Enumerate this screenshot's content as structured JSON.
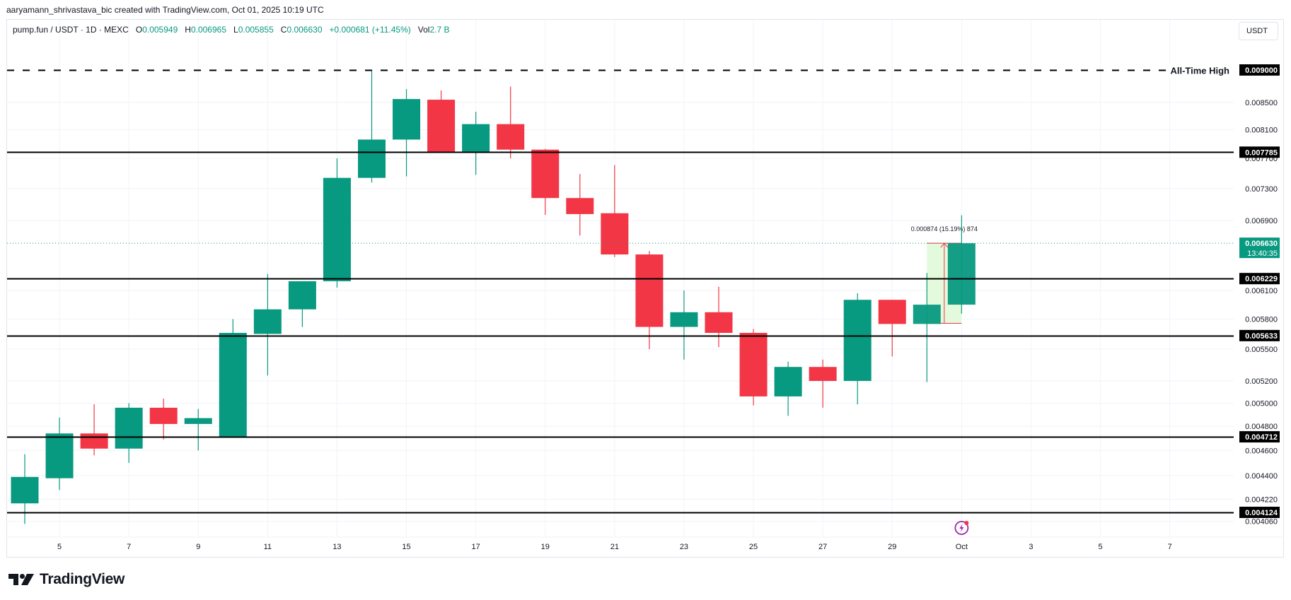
{
  "caption": "aaryamann_shrivastava_bic created with TradingView.com, Oct 01, 2025 10:19 UTC",
  "legend": {
    "symbol": "pump.fun / USDT · 1D · MEXC",
    "open_label": "O",
    "open": "0.005949",
    "high_label": "H",
    "high": "0.006965",
    "low_label": "L",
    "low": "0.005855",
    "close_label": "C",
    "close": "0.006630",
    "change": "+0.000681 (+11.45%)",
    "vol_label": "Vol",
    "vol": "2.7 B"
  },
  "currency_button": "USDT",
  "logo_text": "TradingView",
  "colors": {
    "up": "#089981",
    "down": "#f23645",
    "grid": "#f0f3fa",
    "level_line": "#000000",
    "current_price_bg": "#089981",
    "measure_fill": "#e3fadd",
    "measure_line": "#f23645",
    "event_icon": "#9c27b0"
  },
  "chart_data": {
    "type": "candlestick",
    "title": "pump.fun / USDT · 1D · MEXC",
    "xlabel": "",
    "ylabel": "USDT",
    "y_scale": "log",
    "ylim": [
      0.004,
      0.0093
    ],
    "grid": true,
    "x_tick_labels": [
      "5",
      "7",
      "9",
      "11",
      "13",
      "15",
      "17",
      "19",
      "21",
      "23",
      "25",
      "27",
      "29",
      "Oct",
      "3",
      "5",
      "7",
      "9"
    ],
    "y_tick_labels": [
      "0.008500",
      "0.008100",
      "0.007700",
      "0.007300",
      "0.006900",
      "0.006100",
      "0.005800",
      "0.005500",
      "0.005200",
      "0.005000",
      "0.004800",
      "0.004600",
      "0.004400",
      "0.004220",
      "0.004060"
    ],
    "candles": [
      {
        "date": "Sep 4",
        "open": 0.00419,
        "high": 0.00457,
        "low": 0.00404,
        "close": 0.00439
      },
      {
        "date": "Sep 5",
        "open": 0.00438,
        "high": 0.004875,
        "low": 0.00429,
        "close": 0.00474
      },
      {
        "date": "Sep 6",
        "open": 0.00474,
        "high": 0.00499,
        "low": 0.00456,
        "close": 0.004615
      },
      {
        "date": "Sep 7",
        "open": 0.004615,
        "high": 0.005,
        "low": 0.0045,
        "close": 0.00496
      },
      {
        "date": "Sep 8",
        "open": 0.00496,
        "high": 0.00504,
        "low": 0.00469,
        "close": 0.00482
      },
      {
        "date": "Sep 9",
        "open": 0.00482,
        "high": 0.00495,
        "low": 0.0046,
        "close": 0.00487
      },
      {
        "date": "Sep 10",
        "open": 0.00471,
        "high": 0.0058,
        "low": 0.00471,
        "close": 0.00566
      },
      {
        "date": "Sep 11",
        "open": 0.00565,
        "high": 0.00628,
        "low": 0.00525,
        "close": 0.0059
      },
      {
        "date": "Sep 12",
        "open": 0.0059,
        "high": 0.00617,
        "low": 0.00572,
        "close": 0.0062
      },
      {
        "date": "Sep 13",
        "open": 0.0062,
        "high": 0.0077,
        "low": 0.00613,
        "close": 0.00744
      },
      {
        "date": "Sep 14",
        "open": 0.00744,
        "high": 0.009,
        "low": 0.00738,
        "close": 0.00796
      },
      {
        "date": "Sep 15",
        "open": 0.00796,
        "high": 0.0087,
        "low": 0.00746,
        "close": 0.00855
      },
      {
        "date": "Sep 16",
        "open": 0.00854,
        "high": 0.00868,
        "low": 0.00779,
        "close": 0.00779
      },
      {
        "date": "Sep 17",
        "open": 0.00779,
        "high": 0.00836,
        "low": 0.00748,
        "close": 0.00818
      },
      {
        "date": "Sep 18",
        "open": 0.00818,
        "high": 0.00874,
        "low": 0.0077,
        "close": 0.00782
      },
      {
        "date": "Sep 19",
        "open": 0.00782,
        "high": 0.00783,
        "low": 0.00697,
        "close": 0.00718
      },
      {
        "date": "Sep 20",
        "open": 0.00718,
        "high": 0.00749,
        "low": 0.00672,
        "close": 0.00698
      },
      {
        "date": "Sep 21",
        "open": 0.00699,
        "high": 0.00761,
        "low": 0.00647,
        "close": 0.0065
      },
      {
        "date": "Sep 22",
        "open": 0.0065,
        "high": 0.00654,
        "low": 0.0055,
        "close": 0.00572
      },
      {
        "date": "Sep 23",
        "open": 0.00572,
        "high": 0.0061,
        "low": 0.0054,
        "close": 0.00587
      },
      {
        "date": "Sep 24",
        "open": 0.00587,
        "high": 0.00614,
        "low": 0.00552,
        "close": 0.00566
      },
      {
        "date": "Sep 25",
        "open": 0.00566,
        "high": 0.0057,
        "low": 0.00498,
        "close": 0.00506
      },
      {
        "date": "Sep 26",
        "open": 0.00506,
        "high": 0.00538,
        "low": 0.00489,
        "close": 0.00533
      },
      {
        "date": "Sep 27",
        "open": 0.00533,
        "high": 0.0054,
        "low": 0.00496,
        "close": 0.0052
      },
      {
        "date": "Sep 28",
        "open": 0.0052,
        "high": 0.00607,
        "low": 0.00499,
        "close": 0.006
      },
      {
        "date": "Sep 29",
        "open": 0.006,
        "high": 0.006,
        "low": 0.00543,
        "close": 0.00575
      },
      {
        "date": "Sep 30",
        "open": 0.00575,
        "high": 0.00629,
        "low": 0.00519,
        "close": 0.005949
      },
      {
        "date": "Oct 1",
        "open": 0.005949,
        "high": 0.006965,
        "low": 0.005855,
        "close": 0.00663
      }
    ],
    "horizontal_levels": [
      {
        "price": 0.009,
        "label": "0.009000",
        "style": "dashed",
        "text": "All-Time High"
      },
      {
        "price": 0.007785,
        "label": "0.007785",
        "style": "solid"
      },
      {
        "price": 0.006229,
        "label": "0.006229",
        "style": "solid"
      },
      {
        "price": 0.005633,
        "label": "0.005633",
        "style": "solid"
      },
      {
        "price": 0.004712,
        "label": "0.004712",
        "style": "solid"
      },
      {
        "price": 0.004124,
        "label": "0.004124",
        "style": "solid"
      }
    ],
    "current_price": {
      "price": 0.00663,
      "label": "0.006630",
      "countdown": "13:40:35"
    },
    "measurement": {
      "from": 0.005756,
      "to": 0.00663,
      "label": "0.000874 (15.19%) 874"
    },
    "annotations": [
      "All-Time High",
      "0.000874 (15.19%) 874"
    ]
  }
}
